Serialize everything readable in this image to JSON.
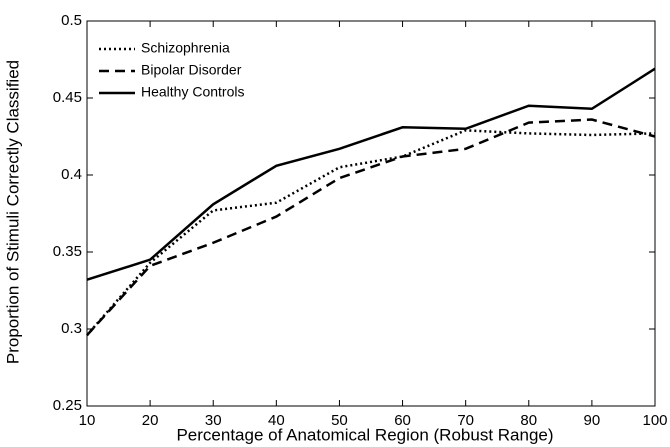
{
  "chart_data": {
    "type": "line",
    "xlabel": "Percentage of Anatomical Region (Robust Range)",
    "ylabel": "Proportion of Stimuli Correctly Classified",
    "x": [
      10,
      20,
      30,
      40,
      50,
      60,
      70,
      80,
      90,
      100
    ],
    "series": [
      {
        "name": "Schizophrenia",
        "color": "#000000",
        "dash": "dotted",
        "values": [
          0.296,
          0.343,
          0.377,
          0.382,
          0.405,
          0.412,
          0.429,
          0.427,
          0.426,
          0.427
        ]
      },
      {
        "name": "Bipolar Disorder",
        "color": "#000000",
        "dash": "dashed",
        "values": [
          0.296,
          0.341,
          0.356,
          0.373,
          0.398,
          0.412,
          0.417,
          0.434,
          0.436,
          0.425
        ]
      },
      {
        "name": "Healthy Controls",
        "color": "#000000",
        "dash": "solid",
        "values": [
          0.332,
          0.345,
          0.381,
          0.406,
          0.417,
          0.431,
          0.43,
          0.445,
          0.443,
          0.469
        ]
      }
    ],
    "xlim": [
      10,
      100
    ],
    "xticks": [
      10,
      20,
      30,
      40,
      50,
      60,
      70,
      80,
      90,
      100
    ],
    "ylim": [
      0.25,
      0.5
    ],
    "yticks": [
      0.25,
      0.3,
      0.35,
      0.4,
      0.45,
      0.5
    ],
    "legend": "upper left",
    "grid": false
  }
}
